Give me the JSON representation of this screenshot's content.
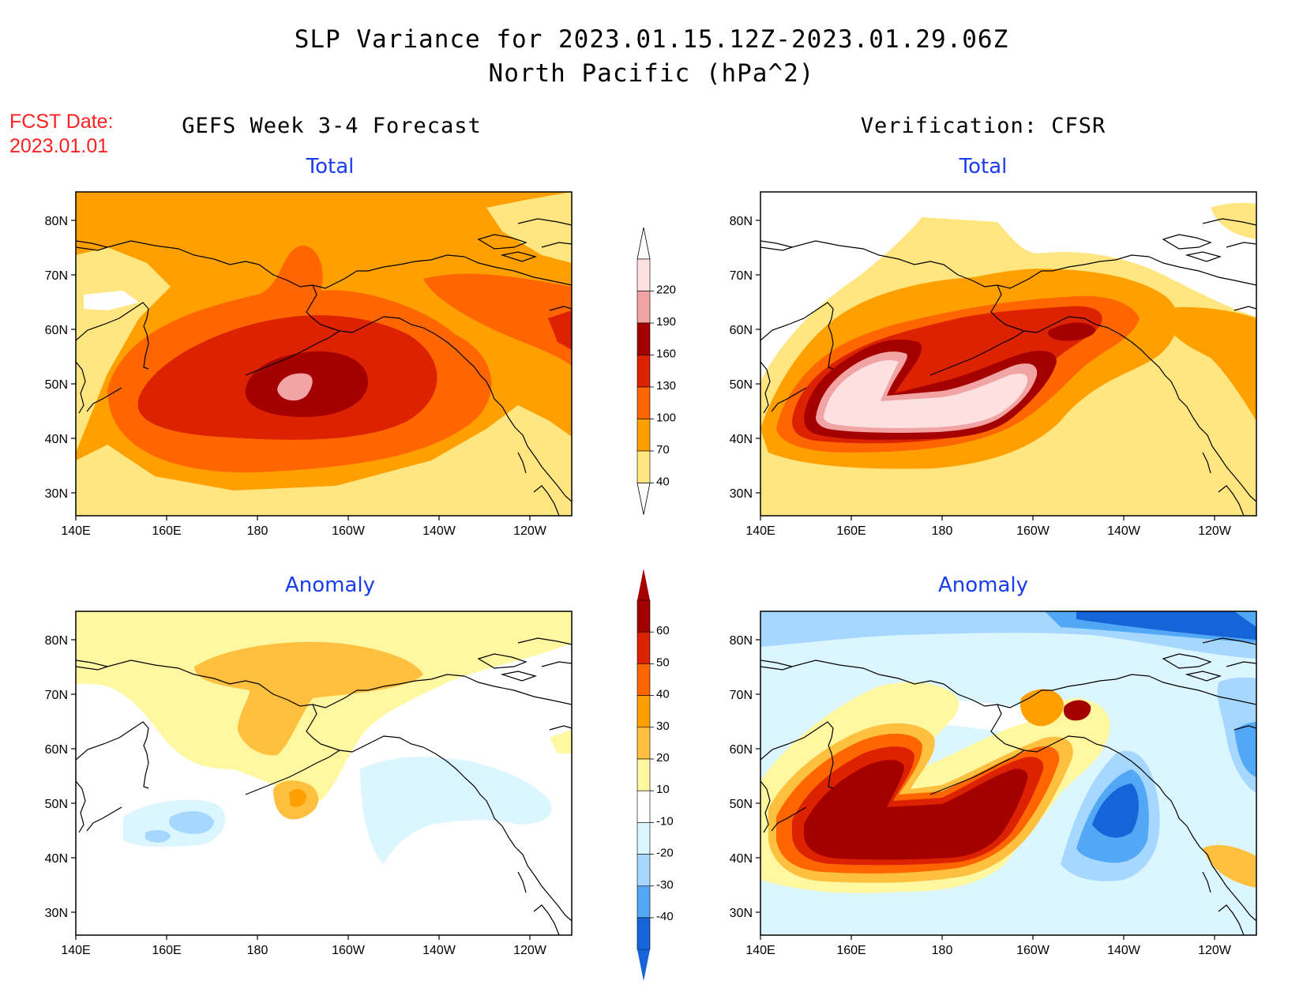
{
  "header": {
    "title_line1": "SLP Variance for 2023.01.15.12Z-2023.01.29.06Z",
    "title_line2": "North Pacific (hPa^2)",
    "fcst_label": "FCST Date:",
    "fcst_date": "2023.01.01",
    "left_column": "GEFS Week 3-4 Forecast",
    "right_column": "Verification: CFSR"
  },
  "panels": {
    "total_label": "Total",
    "anomaly_label": "Anomaly"
  },
  "axes": {
    "lon_ticks": [
      "140E",
      "160E",
      "180",
      "160W",
      "140W",
      "120W"
    ],
    "lat_ticks": [
      "80N",
      "70N",
      "60N",
      "50N",
      "40N",
      "30N"
    ]
  },
  "colorbar_total": {
    "levels": [
      "220",
      "190",
      "160",
      "130",
      "100",
      "70",
      "40"
    ],
    "colors": [
      "#fde0e0",
      "#f2a3a3",
      "#a50000",
      "#dc2200",
      "#ff6600",
      "#ffa000",
      "#ffe680"
    ]
  },
  "colorbar_anomaly": {
    "levels": [
      "60",
      "50",
      "40",
      "30",
      "20",
      "10",
      "-10",
      "-20",
      "-30",
      "-40"
    ],
    "colors": [
      "#a50000",
      "#dc2200",
      "#ff6600",
      "#ffa000",
      "#ffc040",
      "#fff8a0",
      "#ffffff",
      "#dcf6ff",
      "#a6d8ff",
      "#52a8f4",
      "#1565d8"
    ]
  }
}
